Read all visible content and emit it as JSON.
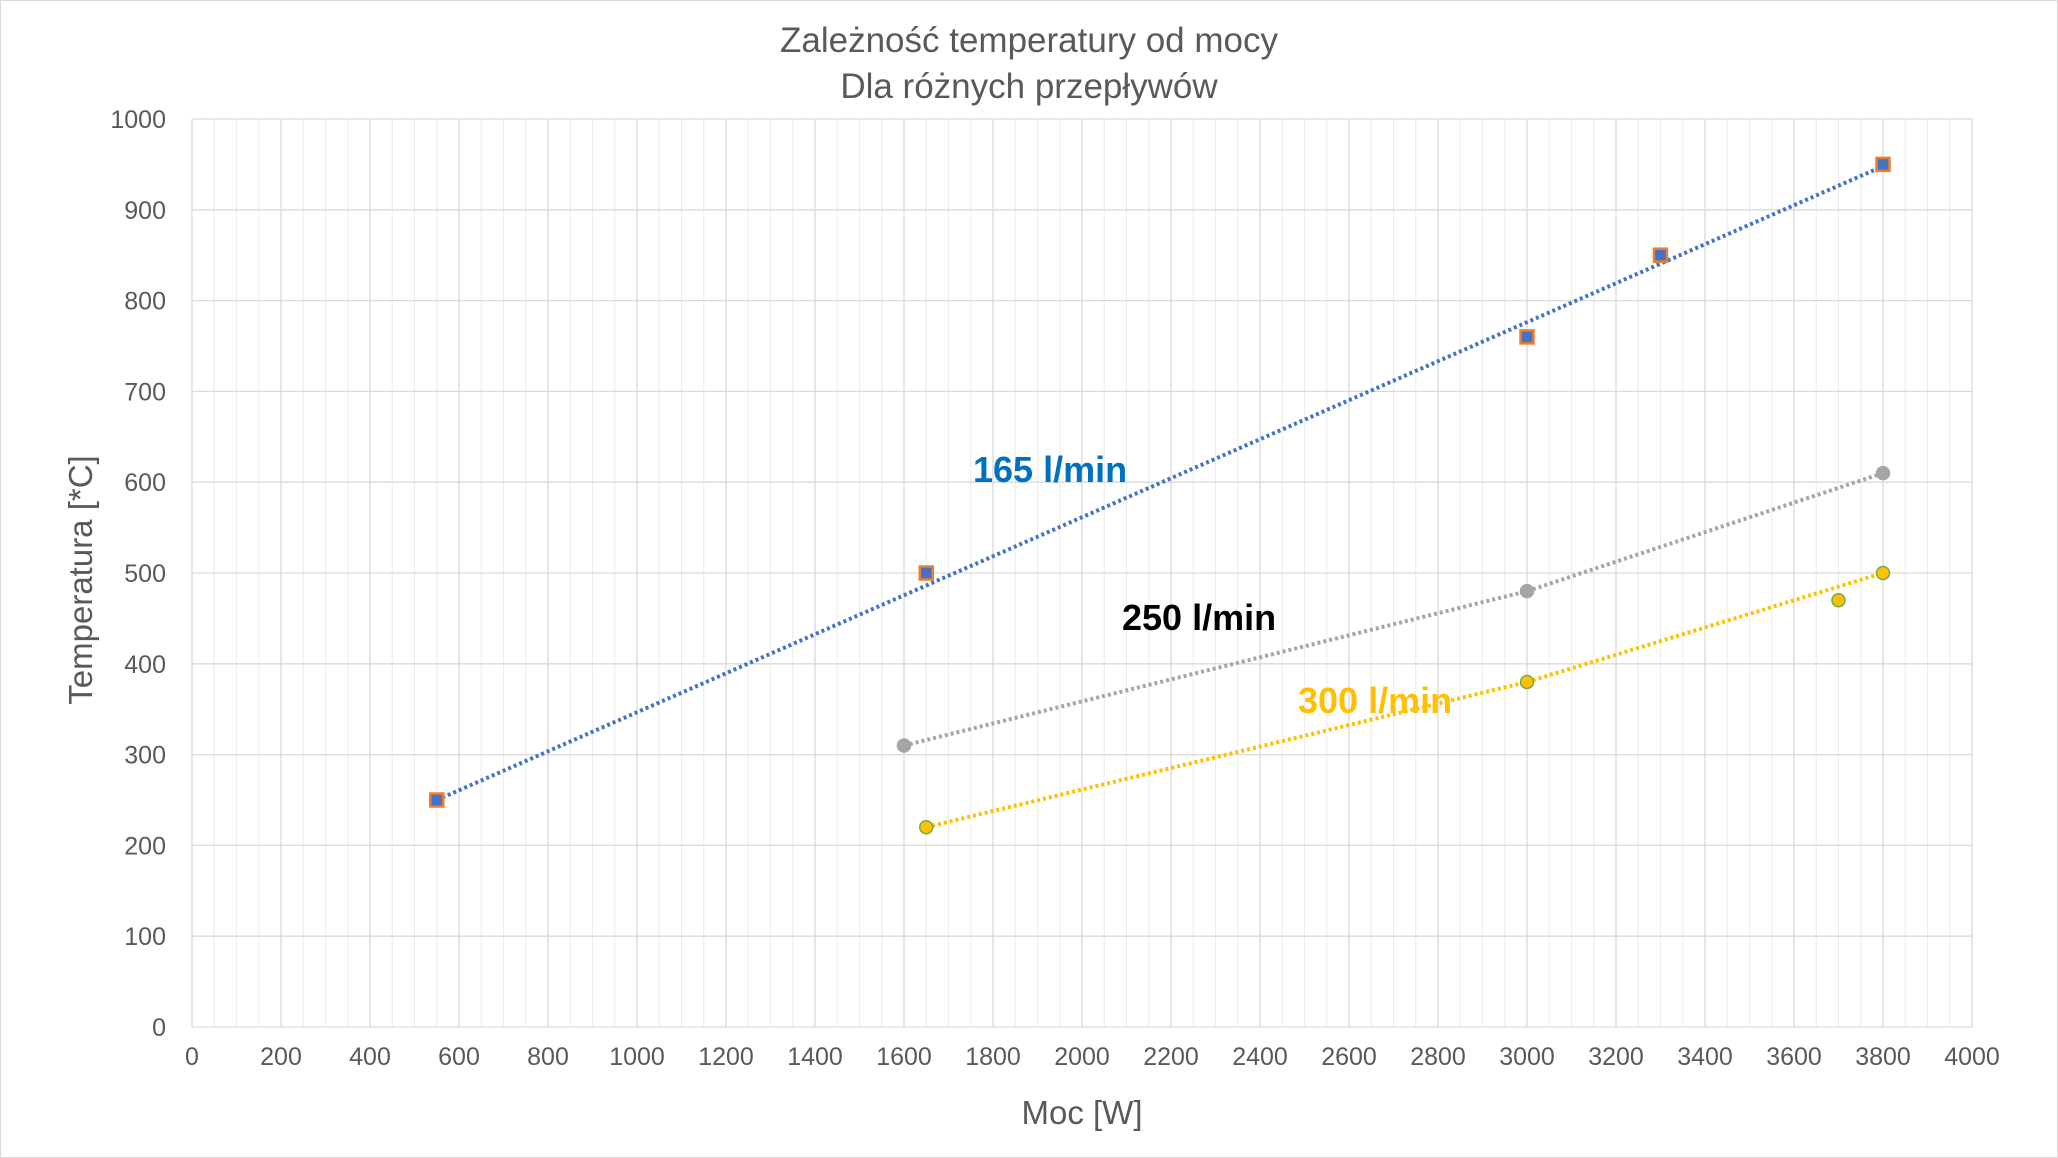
{
  "chart_data": {
    "type": "scatter",
    "title": "Zależność temperatury od mocy",
    "subtitle": "Dla różnych przepływów",
    "xlabel": "Moc [W]",
    "ylabel": "Temperatura [*C]",
    "xlim": [
      0,
      4000
    ],
    "ylim": [
      0,
      1000
    ],
    "x_major_step": 200,
    "x_minor_step": 50,
    "y_major_step": 100,
    "x_tick_labels": [
      "0",
      "200",
      "400",
      "600",
      "800",
      "1000",
      "1200",
      "1400",
      "1600",
      "1800",
      "2000",
      "2200",
      "2400",
      "2600",
      "2800",
      "3000",
      "3200",
      "3400",
      "3600",
      "3800",
      "4000"
    ],
    "y_tick_labels": [
      "0",
      "100",
      "200",
      "300",
      "400",
      "500",
      "600",
      "700",
      "800",
      "900",
      "1000"
    ],
    "grid": true,
    "series": [
      {
        "name": "165 l/min",
        "color": "#0070c0",
        "trend_color": "#4472c4",
        "marker": "square",
        "marker_fill": "#4472c4",
        "marker_edge": "#ed7d31",
        "x": [
          550,
          1650,
          3000,
          3300,
          3800
        ],
        "y": [
          250,
          500,
          760,
          850,
          950
        ],
        "trendline": {
          "x": [
            550,
            3800
          ],
          "y": [
            250,
            948
          ]
        }
      },
      {
        "name": "250 l/min",
        "color": "#000000",
        "trend_color": "#a5a5a5",
        "marker": "circle",
        "marker_fill": "#a5a5a5",
        "marker_edge": "#a5a5a5",
        "x": [
          1600,
          3000,
          3800
        ],
        "y": [
          310,
          480,
          610
        ],
        "trendline": {
          "x": [
            1600,
            3000,
            3800
          ],
          "y": [
            310,
            480,
            610
          ]
        }
      },
      {
        "name": "300 l/min",
        "color": "#ffc000",
        "trend_color": "#ffc000",
        "marker": "circle",
        "marker_fill": "#ffc000",
        "marker_edge": "#70ad47",
        "x": [
          1650,
          3000,
          3700,
          3800
        ],
        "y": [
          220,
          380,
          470,
          500
        ],
        "trendline": {
          "x": [
            1650,
            3000,
            3800
          ],
          "y": [
            220,
            380,
            500
          ]
        }
      }
    ]
  }
}
